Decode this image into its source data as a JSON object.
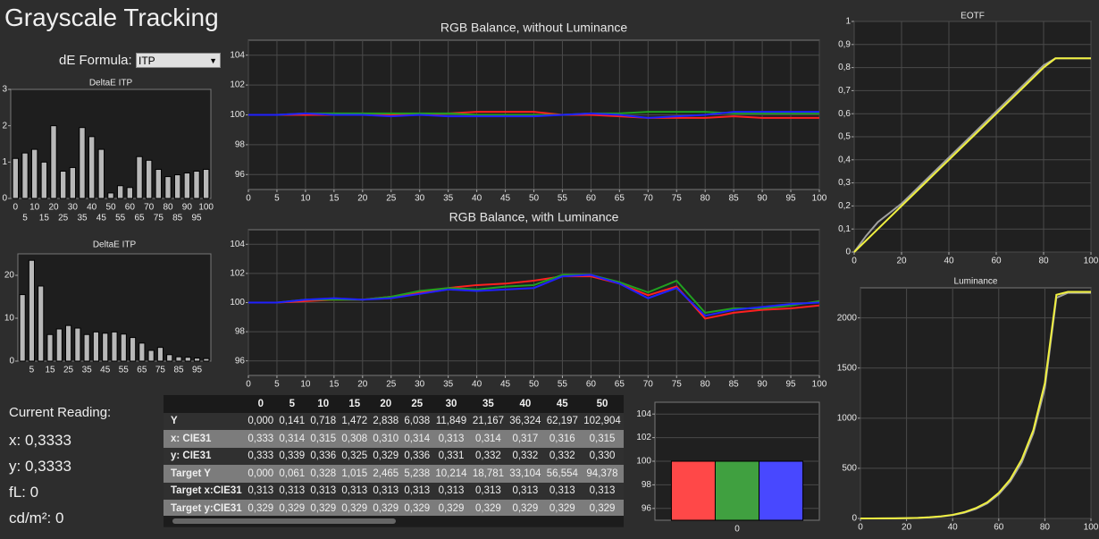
{
  "title": "Grayscale Tracking",
  "formula_label": "dE Formula:",
  "formula_value": "ITP",
  "chart_data": [
    {
      "type": "bar",
      "title": "DeltaE ITP",
      "categories": [
        "0",
        "5",
        "10",
        "15",
        "20",
        "25",
        "30",
        "35",
        "40",
        "45",
        "50",
        "55",
        "60",
        "65",
        "70",
        "75",
        "80",
        "85",
        "90",
        "95",
        "100"
      ],
      "values": [
        1.1,
        1.25,
        1.35,
        1.0,
        2.0,
        0.75,
        0.85,
        1.95,
        1.7,
        1.35,
        0.15,
        0.35,
        0.3,
        1.15,
        1.05,
        0.8,
        0.6,
        0.65,
        0.7,
        0.75,
        0.8
      ],
      "color": "#b8b8b8",
      "ylim": [
        0,
        3
      ],
      "yticks": [
        0,
        1,
        2,
        3
      ],
      "grid": false
    },
    {
      "type": "bar",
      "title": "DeltaE ITP",
      "categories": [
        null,
        "5",
        null,
        "15",
        null,
        "25",
        null,
        "35",
        null,
        "45",
        null,
        "55",
        null,
        "65",
        null,
        "75",
        null,
        "85",
        null,
        "95",
        null
      ],
      "values": [
        15.5,
        23.5,
        17.5,
        6.2,
        7.5,
        8.3,
        7.7,
        6.2,
        6.8,
        6.5,
        6.8,
        6.3,
        5.5,
        4.2,
        2.5,
        3.2,
        1.5,
        1.0,
        0.9,
        0.7,
        0.6
      ],
      "color": "#b8b8b8",
      "ylim": [
        0,
        25
      ],
      "yticks": [
        0,
        10,
        20
      ],
      "grid": false
    },
    {
      "type": "line",
      "title": "RGB Balance, without Luminance",
      "x": [
        0,
        5,
        10,
        15,
        20,
        25,
        30,
        35,
        40,
        45,
        50,
        55,
        60,
        65,
        70,
        75,
        80,
        85,
        90,
        95,
        100
      ],
      "series": [
        {
          "color": "#ff2020",
          "values": [
            100,
            100,
            100,
            100,
            100.1,
            100,
            100,
            100.1,
            100.2,
            100.2,
            100.2,
            100,
            100,
            99.9,
            99.8,
            99.8,
            99.8,
            99.9,
            99.8,
            99.8,
            99.8
          ]
        },
        {
          "color": "#20a020",
          "values": [
            100,
            100,
            100.1,
            100.1,
            100.1,
            100.1,
            100.1,
            100.1,
            100,
            100,
            100,
            100,
            100.1,
            100.1,
            100.2,
            100.2,
            100.2,
            100.1,
            100.1,
            100.1,
            100.1
          ]
        },
        {
          "color": "#2020ff",
          "values": [
            100,
            100,
            100.1,
            100,
            100,
            99.9,
            100,
            99.9,
            99.9,
            99.9,
            99.9,
            100,
            100.1,
            100,
            99.8,
            99.9,
            100,
            100.2,
            100.2,
            100.2,
            100.2
          ]
        }
      ],
      "xlim": [
        0,
        100
      ],
      "xticks": [
        0,
        5,
        10,
        15,
        20,
        25,
        30,
        35,
        40,
        45,
        50,
        55,
        60,
        65,
        70,
        75,
        80,
        85,
        90,
        95,
        100
      ],
      "ylim": [
        95,
        105
      ],
      "yticks": [
        96,
        98,
        100,
        102,
        104
      ],
      "grid": true
    },
    {
      "type": "line",
      "title": "RGB Balance, with Luminance",
      "x": [
        0,
        5,
        10,
        15,
        20,
        25,
        30,
        35,
        40,
        45,
        50,
        55,
        60,
        65,
        70,
        75,
        80,
        85,
        90,
        95,
        100
      ],
      "series": [
        {
          "color": "#ff2020",
          "values": [
            100,
            100,
            100.1,
            100.2,
            100.2,
            100.4,
            100.7,
            101,
            101.2,
            101.3,
            101.5,
            101.8,
            101.8,
            101.3,
            100.5,
            101.1,
            98.9,
            99.3,
            99.5,
            99.6,
            99.8
          ]
        },
        {
          "color": "#20a020",
          "values": [
            100,
            100,
            100.2,
            100.2,
            100.2,
            100.4,
            100.8,
            101,
            100.9,
            101.1,
            101.2,
            101.9,
            101.9,
            101.4,
            100.7,
            101.5,
            99.3,
            99.6,
            99.6,
            99.8,
            100.1
          ]
        },
        {
          "color": "#2020ff",
          "values": [
            100,
            100,
            100.2,
            100.3,
            100.2,
            100.3,
            100.6,
            100.9,
            100.8,
            100.9,
            101,
            101.8,
            101.9,
            101.3,
            100.3,
            101,
            99.1,
            99.5,
            99.7,
            99.9,
            100
          ]
        }
      ],
      "xlim": [
        0,
        100
      ],
      "xticks": [
        0,
        5,
        10,
        15,
        20,
        25,
        30,
        35,
        40,
        45,
        50,
        55,
        60,
        65,
        70,
        75,
        80,
        85,
        90,
        95,
        100
      ],
      "ylim": [
        95,
        105
      ],
      "yticks": [
        96,
        98,
        100,
        102,
        104
      ],
      "grid": true
    },
    {
      "type": "line",
      "title": "EOTF",
      "x": [
        0,
        5,
        10,
        15,
        20,
        25,
        30,
        35,
        40,
        45,
        50,
        55,
        60,
        65,
        70,
        75,
        80,
        85,
        90,
        95,
        100
      ],
      "series": [
        {
          "color": "#a0a0a0",
          "values": [
            0,
            0.07,
            0.13,
            0.17,
            0.21,
            0.26,
            0.31,
            0.36,
            0.41,
            0.46,
            0.51,
            0.56,
            0.61,
            0.66,
            0.71,
            0.76,
            0.81,
            0.84,
            0.84,
            0.84,
            0.84
          ]
        },
        {
          "color": "#f0f040",
          "values": [
            0,
            0.05,
            0.1,
            0.15,
            0.2,
            0.25,
            0.3,
            0.35,
            0.4,
            0.45,
            0.5,
            0.55,
            0.6,
            0.65,
            0.7,
            0.75,
            0.8,
            0.84,
            0.84,
            0.84,
            0.84
          ]
        }
      ],
      "xlim": [
        0,
        100
      ],
      "xticks": [
        0,
        20,
        40,
        60,
        80,
        100
      ],
      "ylim": [
        0,
        1
      ],
      "yticks": [
        0,
        {
          "value": 0.1,
          "label": "0,1"
        },
        {
          "value": 0.2,
          "label": "0,2"
        },
        {
          "value": 0.3,
          "label": "0,3"
        },
        {
          "value": 0.4,
          "label": "0,4"
        },
        {
          "value": 0.5,
          "label": "0,5"
        },
        {
          "value": 0.6,
          "label": "0,6"
        },
        {
          "value": 0.7,
          "label": "0,7"
        },
        {
          "value": 0.8,
          "label": "0,8"
        },
        {
          "value": 0.9,
          "label": "0,9"
        },
        1
      ],
      "grid": true
    },
    {
      "type": "bar",
      "categories": [
        "0"
      ],
      "series": [
        {
          "color": "#ff4848",
          "values": [
            100
          ]
        },
        {
          "color": "#40a040",
          "values": [
            100
          ]
        },
        {
          "color": "#4848ff",
          "values": [
            100
          ]
        }
      ],
      "ylim": [
        95,
        105
      ],
      "yticks": [
        96,
        98,
        100,
        102,
        104
      ],
      "grid": true
    },
    {
      "type": "line",
      "title": "Luminance",
      "x": [
        0,
        5,
        10,
        15,
        20,
        25,
        30,
        35,
        40,
        45,
        50,
        55,
        60,
        65,
        70,
        75,
        80,
        85,
        90,
        95,
        100
      ],
      "series": [
        {
          "color": "#a0a0a0",
          "values": [
            0,
            0.06,
            0.33,
            1.0,
            2.5,
            5.2,
            10.2,
            18.8,
            33.1,
            56.6,
            94.4,
            150,
            240,
            370,
            560,
            850,
            1300,
            2200,
            2250,
            2250,
            2250
          ]
        },
        {
          "color": "#f0f040",
          "values": [
            0,
            0.141,
            0.718,
            1.472,
            2.838,
            6.038,
            11.849,
            21.167,
            36.324,
            62.197,
            102.904,
            160,
            255,
            390,
            590,
            880,
            1350,
            2230,
            2260,
            2260,
            2260
          ]
        }
      ],
      "xlim": [
        0,
        100
      ],
      "xticks": [
        0,
        20,
        40,
        60,
        80,
        100
      ],
      "ylim": [
        0,
        2300
      ],
      "yticks": [
        0,
        500,
        1000,
        1500,
        2000
      ],
      "grid": true
    }
  ],
  "table": {
    "header": [
      "0",
      "5",
      "10",
      "15",
      "20",
      "25",
      "30",
      "35",
      "40",
      "45",
      "50"
    ],
    "rows": [
      {
        "label": "Y",
        "cells": [
          "0,000",
          "0,141",
          "0,718",
          "1,472",
          "2,838",
          "6,038",
          "11,849",
          "21,167",
          "36,324",
          "62,197",
          "102,904"
        ]
      },
      {
        "label": "x: CIE31",
        "cells": [
          "0,333",
          "0,314",
          "0,315",
          "0,308",
          "0,310",
          "0,314",
          "0,313",
          "0,314",
          "0,317",
          "0,316",
          "0,315"
        ]
      },
      {
        "label": "y: CIE31",
        "cells": [
          "0,333",
          "0,339",
          "0,336",
          "0,325",
          "0,329",
          "0,336",
          "0,331",
          "0,332",
          "0,332",
          "0,332",
          "0,330"
        ]
      },
      {
        "label": "Target Y",
        "cells": [
          "0,000",
          "0,061",
          "0,328",
          "1,015",
          "2,465",
          "5,238",
          "10,214",
          "18,781",
          "33,104",
          "56,554",
          "94,378"
        ]
      },
      {
        "label": "Target x:CIE31",
        "cells": [
          "0,313",
          "0,313",
          "0,313",
          "0,313",
          "0,313",
          "0,313",
          "0,313",
          "0,313",
          "0,313",
          "0,313",
          "0,313"
        ]
      },
      {
        "label": "Target y:CIE31",
        "cells": [
          "0,329",
          "0,329",
          "0,329",
          "0,329",
          "0,329",
          "0,329",
          "0,329",
          "0,329",
          "0,329",
          "0,329",
          "0,329"
        ]
      }
    ]
  },
  "reading": {
    "heading": "Current Reading:",
    "lines": [
      "x: 0,3333",
      "y: 0,3333",
      "fL: 0",
      "cd/m²: 0"
    ]
  }
}
